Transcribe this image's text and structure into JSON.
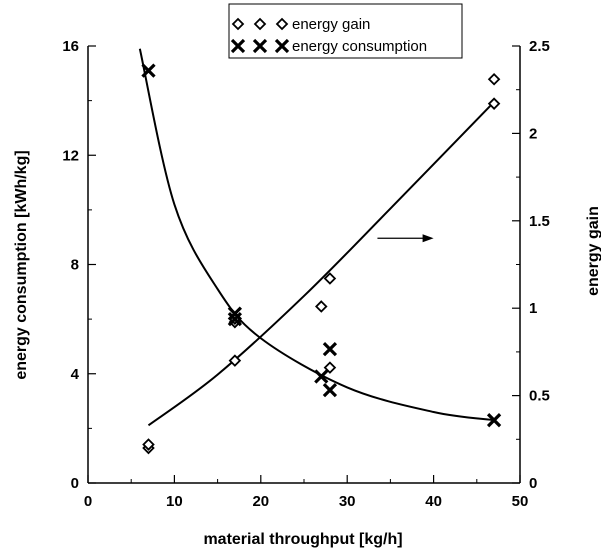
{
  "chart_data": {
    "type": "scatter",
    "xlabel": "material throughput [kg/h]",
    "ylabel": "energy consumption [kWh/kg]",
    "y2label": "energy gain",
    "xlim": [
      0,
      50
    ],
    "ylim": [
      0,
      16
    ],
    "y2lim": [
      0,
      2.5
    ],
    "x_ticks": [
      "0",
      "10",
      "20",
      "30",
      "40",
      "50"
    ],
    "y_ticks": [
      "0",
      "4",
      "8",
      "12",
      "16"
    ],
    "y2_ticks": [
      "0",
      "0.5",
      "1",
      "1.5",
      "2",
      "2.5"
    ],
    "grid": false,
    "legend_position": "top-center",
    "series": [
      {
        "name": "energy gain",
        "marker": "diamond",
        "axis": "right",
        "points": [
          [
            7,
            0.2
          ],
          [
            7,
            0.22
          ],
          [
            17,
            0.7
          ],
          [
            17,
            0.92
          ],
          [
            17,
            0.94
          ],
          [
            27,
            1.01
          ],
          [
            28,
            1.17
          ],
          [
            28,
            0.66
          ],
          [
            47,
            2.31
          ],
          [
            47,
            2.17
          ]
        ],
        "fit": [
          [
            7,
            0.33
          ],
          [
            15,
            0.62
          ],
          [
            25,
            1.07
          ],
          [
            35,
            1.57
          ],
          [
            47,
            2.18
          ]
        ]
      },
      {
        "name": "energy consumption",
        "marker": "cross",
        "axis": "left",
        "points": [
          [
            7,
            15.1
          ],
          [
            17,
            6.2
          ],
          [
            17,
            6.0
          ],
          [
            27,
            3.9
          ],
          [
            28,
            4.9
          ],
          [
            28,
            3.4
          ],
          [
            47,
            2.3
          ]
        ],
        "fit": [
          [
            6,
            15.9
          ],
          [
            10,
            10.2
          ],
          [
            15,
            7.1
          ],
          [
            20,
            5.3
          ],
          [
            30,
            3.5
          ],
          [
            40,
            2.6
          ],
          [
            47,
            2.3
          ]
        ]
      }
    ],
    "annotation_arrow": {
      "from": [
        33.5,
        1.4
      ],
      "to": [
        40,
        1.4
      ],
      "label": ""
    }
  }
}
